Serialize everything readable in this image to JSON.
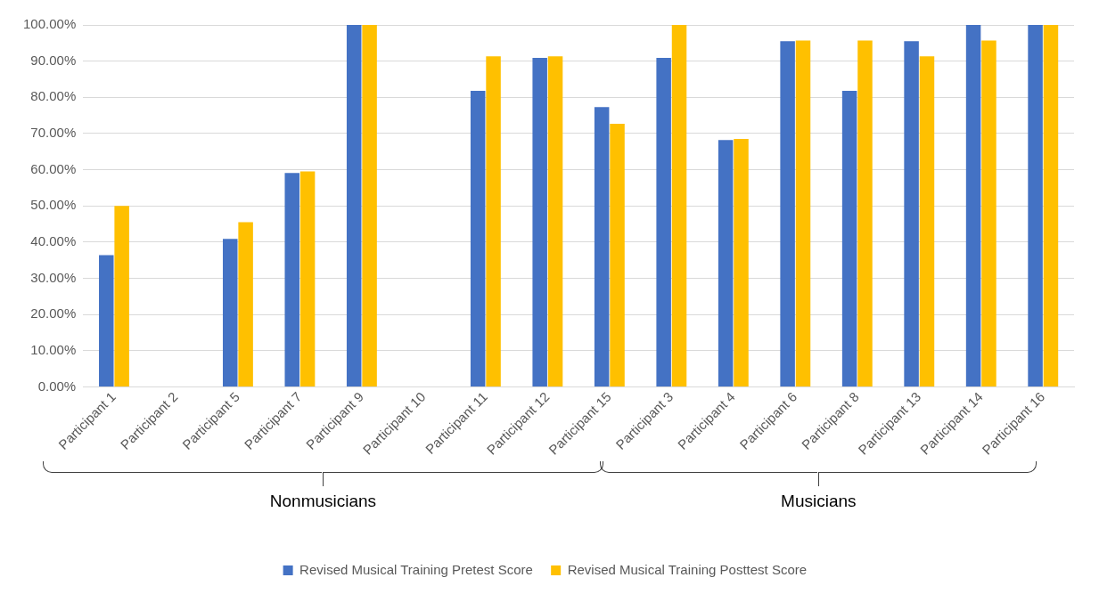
{
  "chart_data": {
    "type": "bar",
    "categories": [
      "Participant 1",
      "Participant 2",
      "Participant 5",
      "Participant 7",
      "Participant 9",
      "Participant 10",
      "Participant 11",
      "Participant 12",
      "Participant 15",
      "Participant 3",
      "Participant 4",
      "Participant 6",
      "Participant 8",
      "Participant 13",
      "Participant 14",
      "Participant 16"
    ],
    "series": [
      {
        "name": "Revised Musical Training Pretest Score",
        "color": "#4472c4",
        "values": [
          36.4,
          null,
          40.9,
          59.1,
          100,
          null,
          81.8,
          90.9,
          77.3,
          90.9,
          68.2,
          95.5,
          81.8,
          95.5,
          100,
          100
        ]
      },
      {
        "name": "Revised Musical Training Posttest Score",
        "color": "#ffc000",
        "values": [
          50,
          null,
          45.5,
          59.5,
          100,
          null,
          91.3,
          91.3,
          72.7,
          100,
          68.5,
          95.7,
          95.7,
          91.3,
          95.7,
          100
        ]
      }
    ],
    "ylim": [
      0,
      100
    ],
    "yticks": [
      {
        "value": 0,
        "label": "0.00%"
      },
      {
        "value": 10,
        "label": "10.00%"
      },
      {
        "value": 20,
        "label": "20.00%"
      },
      {
        "value": 30,
        "label": "30.00%"
      },
      {
        "value": 40,
        "label": "40.00%"
      },
      {
        "value": 50,
        "label": "50.00%"
      },
      {
        "value": 60,
        "label": "60.00%"
      },
      {
        "value": 70,
        "label": "70.00%"
      },
      {
        "value": 80,
        "label": "80.00%"
      },
      {
        "value": 90,
        "label": "90.00%"
      },
      {
        "value": 100,
        "label": "100.00%"
      }
    ],
    "grid": "y",
    "legend": "bottom",
    "annotations": [
      "Nonmusicians",
      "Musicians"
    ]
  }
}
